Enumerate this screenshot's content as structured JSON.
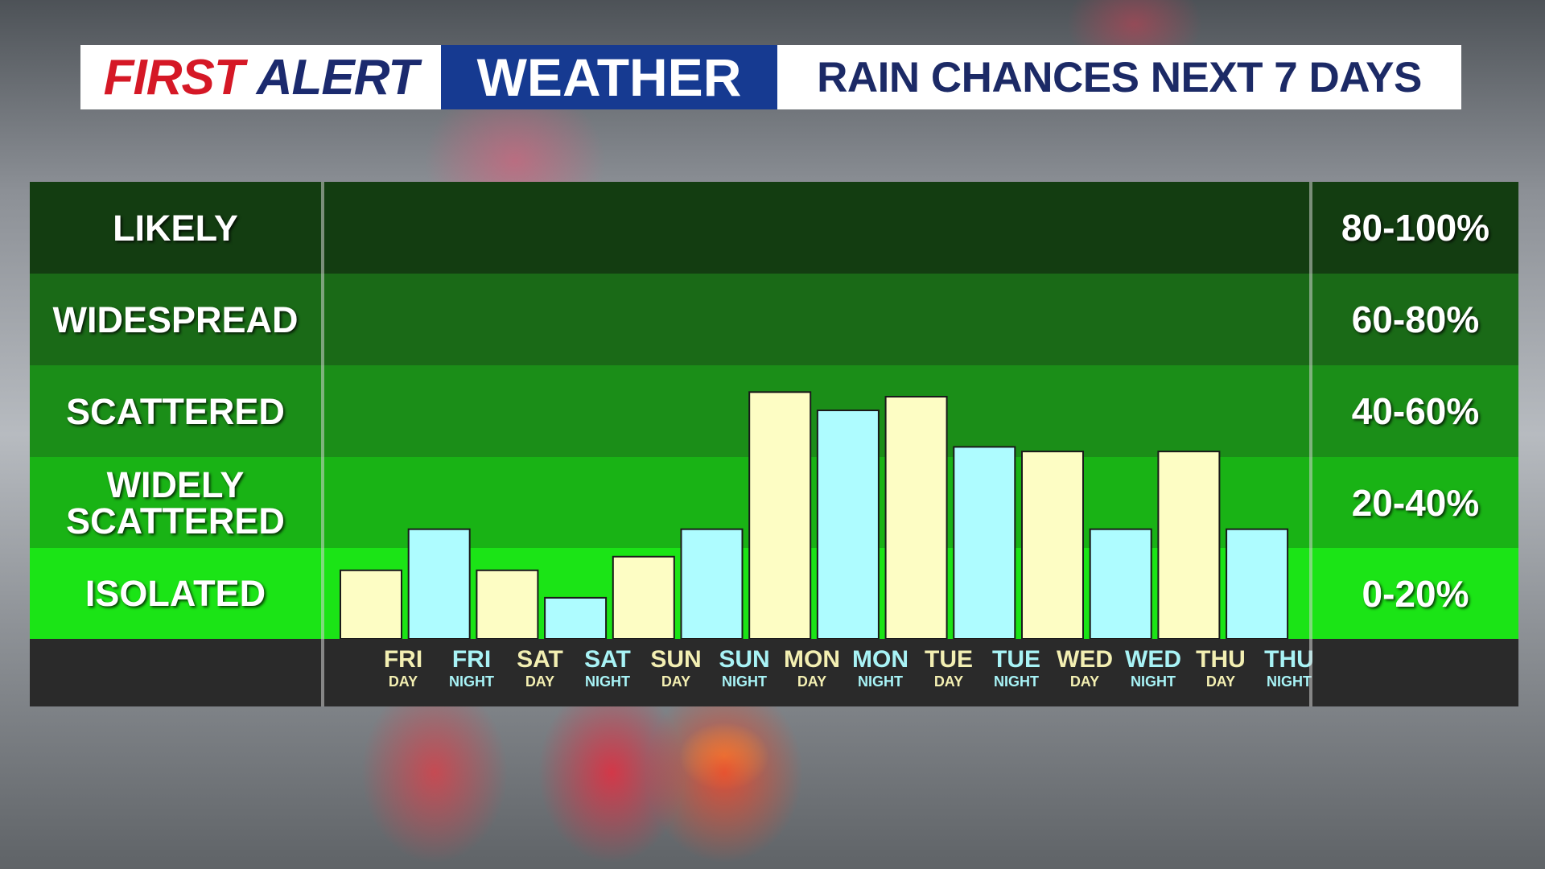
{
  "header": {
    "brand_first": "FIRST",
    "brand_alert": "ALERT",
    "brand_weather": "WEATHER",
    "title": "RAIN CHANCES NEXT 7 DAYS"
  },
  "categories": [
    "LIKELY",
    "WIDESPREAD",
    "SCATTERED",
    "WIDELY SCATTERED",
    "ISOLATED"
  ],
  "ranges": [
    "80-100%",
    "60-80%",
    "40-60%",
    "20-40%",
    "0-20%"
  ],
  "periods": [
    {
      "day": "FRI",
      "part": "DAY"
    },
    {
      "day": "FRI",
      "part": "NIGHT"
    },
    {
      "day": "SAT",
      "part": "DAY"
    },
    {
      "day": "SAT",
      "part": "NIGHT"
    },
    {
      "day": "SUN",
      "part": "DAY"
    },
    {
      "day": "SUN",
      "part": "NIGHT"
    },
    {
      "day": "MON",
      "part": "DAY"
    },
    {
      "day": "MON",
      "part": "NIGHT"
    },
    {
      "day": "TUE",
      "part": "DAY"
    },
    {
      "day": "TUE",
      "part": "NIGHT"
    },
    {
      "day": "WED",
      "part": "DAY"
    },
    {
      "day": "WED",
      "part": "NIGHT"
    },
    {
      "day": "THU",
      "part": "DAY"
    },
    {
      "day": "THU",
      "part": "NIGHT"
    }
  ],
  "chart_data": {
    "type": "bar",
    "categories": [
      "FRI DAY",
      "FRI NIGHT",
      "SAT DAY",
      "SAT NIGHT",
      "SUN DAY",
      "SUN NIGHT",
      "MON DAY",
      "MON NIGHT",
      "TUE DAY",
      "TUE NIGHT",
      "WED DAY",
      "WED NIGHT",
      "THU DAY",
      "THU NIGHT"
    ],
    "values": [
      15,
      24,
      15,
      9,
      18,
      24,
      54,
      50,
      53,
      42,
      41,
      24,
      41,
      24
    ],
    "ylim": [
      0,
      100
    ],
    "yticks": [
      "0-20%",
      "20-40%",
      "40-60%",
      "60-80%",
      "80-100%"
    ],
    "grid": false,
    "colors": {
      "day": "#fdfdc4",
      "night": "#aefcff",
      "bar_outline": "#1a1a1a",
      "likely": "#133d11",
      "widespread": "#1a6a17",
      "scattered": "#1b8e18",
      "widely_scattered": "#19b315",
      "isolated": "#1be416"
    }
  }
}
